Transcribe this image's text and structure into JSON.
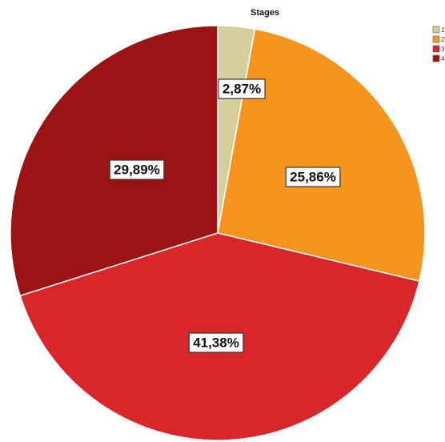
{
  "chart_data": {
    "type": "pie",
    "legend_title": "Stages",
    "legend_position": "top-right",
    "categories": [
      "1",
      "2",
      "3",
      "4"
    ],
    "values": [
      2.87,
      25.86,
      41.38,
      29.89
    ],
    "labels": [
      "2,87%",
      "25,86%",
      "41,38%",
      "29,89%"
    ],
    "colors": [
      "#d4cf9c",
      "#f7941d",
      "#d9262a",
      "#9b1414"
    ]
  }
}
